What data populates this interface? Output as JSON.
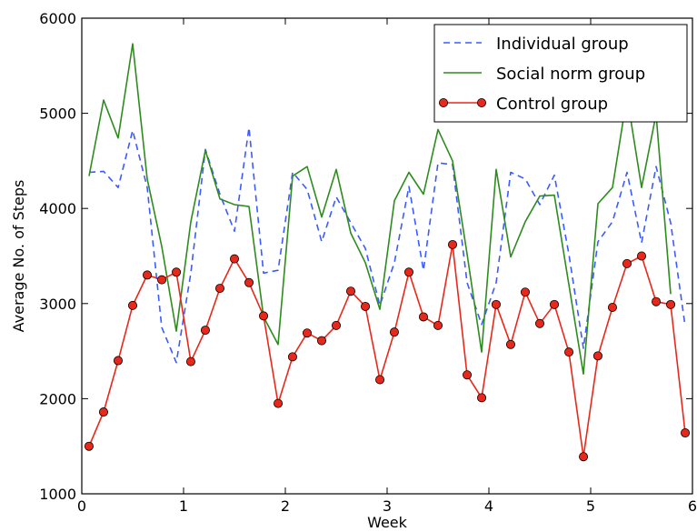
{
  "chart_data": {
    "type": "line",
    "xlabel": "Week",
    "ylabel": "Average No. of Steps",
    "xlim": [
      0,
      6
    ],
    "ylim": [
      1000,
      6000
    ],
    "xticks": [
      "0",
      "1",
      "2",
      "3",
      "4",
      "5",
      "6"
    ],
    "yticks": [
      "1000",
      "2000",
      "3000",
      "4000",
      "5000",
      "6000"
    ],
    "grid": false,
    "legend_position": "top-right",
    "series": [
      {
        "name": "Individual group",
        "style": "dashed",
        "color": "#3b5bff",
        "x": [
          0.071,
          0.214,
          0.357,
          0.5,
          0.643,
          0.786,
          0.929,
          1.071,
          1.214,
          1.357,
          1.5,
          1.643,
          1.786,
          1.929,
          2.071,
          2.214,
          2.357,
          2.5,
          2.643,
          2.786,
          2.929,
          3.071,
          3.214,
          3.357,
          3.5,
          3.643,
          3.786,
          3.929,
          4.071,
          4.214,
          4.357,
          4.5,
          4.643,
          4.786,
          4.929,
          5.071,
          5.214,
          5.357,
          5.5,
          5.643,
          5.786,
          5.929
        ],
        "values": [
          4380,
          4390,
          4220,
          4820,
          4220,
          2750,
          2380,
          3320,
          4620,
          4150,
          3760,
          4850,
          3320,
          3350,
          4380,
          4200,
          3650,
          4120,
          3850,
          3580,
          2980,
          3430,
          4230,
          3350,
          4480,
          4460,
          3220,
          2780,
          3220,
          4380,
          4310,
          4040,
          4350,
          3520,
          2530,
          3650,
          3860,
          4380,
          3640,
          4440,
          3850,
          2760
        ]
      },
      {
        "name": "Social norm group",
        "style": "solid",
        "color": "#2e8b1e",
        "x": [
          0.071,
          0.214,
          0.357,
          0.5,
          0.643,
          0.786,
          0.929,
          1.071,
          1.214,
          1.357,
          1.5,
          1.643,
          1.786,
          1.929,
          2.071,
          2.214,
          2.357,
          2.5,
          2.643,
          2.786,
          2.929,
          3.071,
          3.214,
          3.357,
          3.5,
          3.643,
          3.786,
          3.929,
          4.071,
          4.214,
          4.357,
          4.5,
          4.643,
          4.786,
          4.929,
          5.071,
          5.214,
          5.357,
          5.5,
          5.643,
          5.786
        ],
        "values": [
          4340,
          5140,
          4740,
          5730,
          4310,
          3600,
          2710,
          3860,
          4610,
          4100,
          4040,
          4020,
          2860,
          2570,
          4340,
          4440,
          3910,
          4410,
          3740,
          3430,
          2940,
          4080,
          4380,
          4150,
          4830,
          4500,
          3520,
          2490,
          4410,
          3490,
          3860,
          4130,
          4140,
          3200,
          2260,
          4050,
          4220,
          5180,
          4220,
          4990,
          3100
        ]
      },
      {
        "name": "Control group",
        "style": "solid-markers",
        "color": "#e8281a",
        "x": [
          0.071,
          0.214,
          0.357,
          0.5,
          0.643,
          0.786,
          0.929,
          1.071,
          1.214,
          1.357,
          1.5,
          1.643,
          1.786,
          1.929,
          2.071,
          2.214,
          2.357,
          2.5,
          2.643,
          2.786,
          2.929,
          3.071,
          3.214,
          3.357,
          3.5,
          3.643,
          3.786,
          3.929,
          4.071,
          4.214,
          4.357,
          4.5,
          4.643,
          4.786,
          4.929,
          5.071,
          5.214,
          5.357,
          5.5,
          5.643,
          5.786,
          5.929
        ],
        "values": [
          1500,
          1860,
          2400,
          2980,
          3300,
          3250,
          3330,
          2390,
          2720,
          3160,
          3470,
          3220,
          2870,
          1950,
          2440,
          2690,
          2610,
          2770,
          3130,
          2970,
          2200,
          2700,
          3330,
          2860,
          2770,
          3620,
          2250,
          2010,
          2990,
          2570,
          3120,
          2790,
          2990,
          2490,
          1390,
          2450,
          2960,
          3420,
          3500,
          3020,
          2990,
          1640
        ]
      }
    ]
  }
}
